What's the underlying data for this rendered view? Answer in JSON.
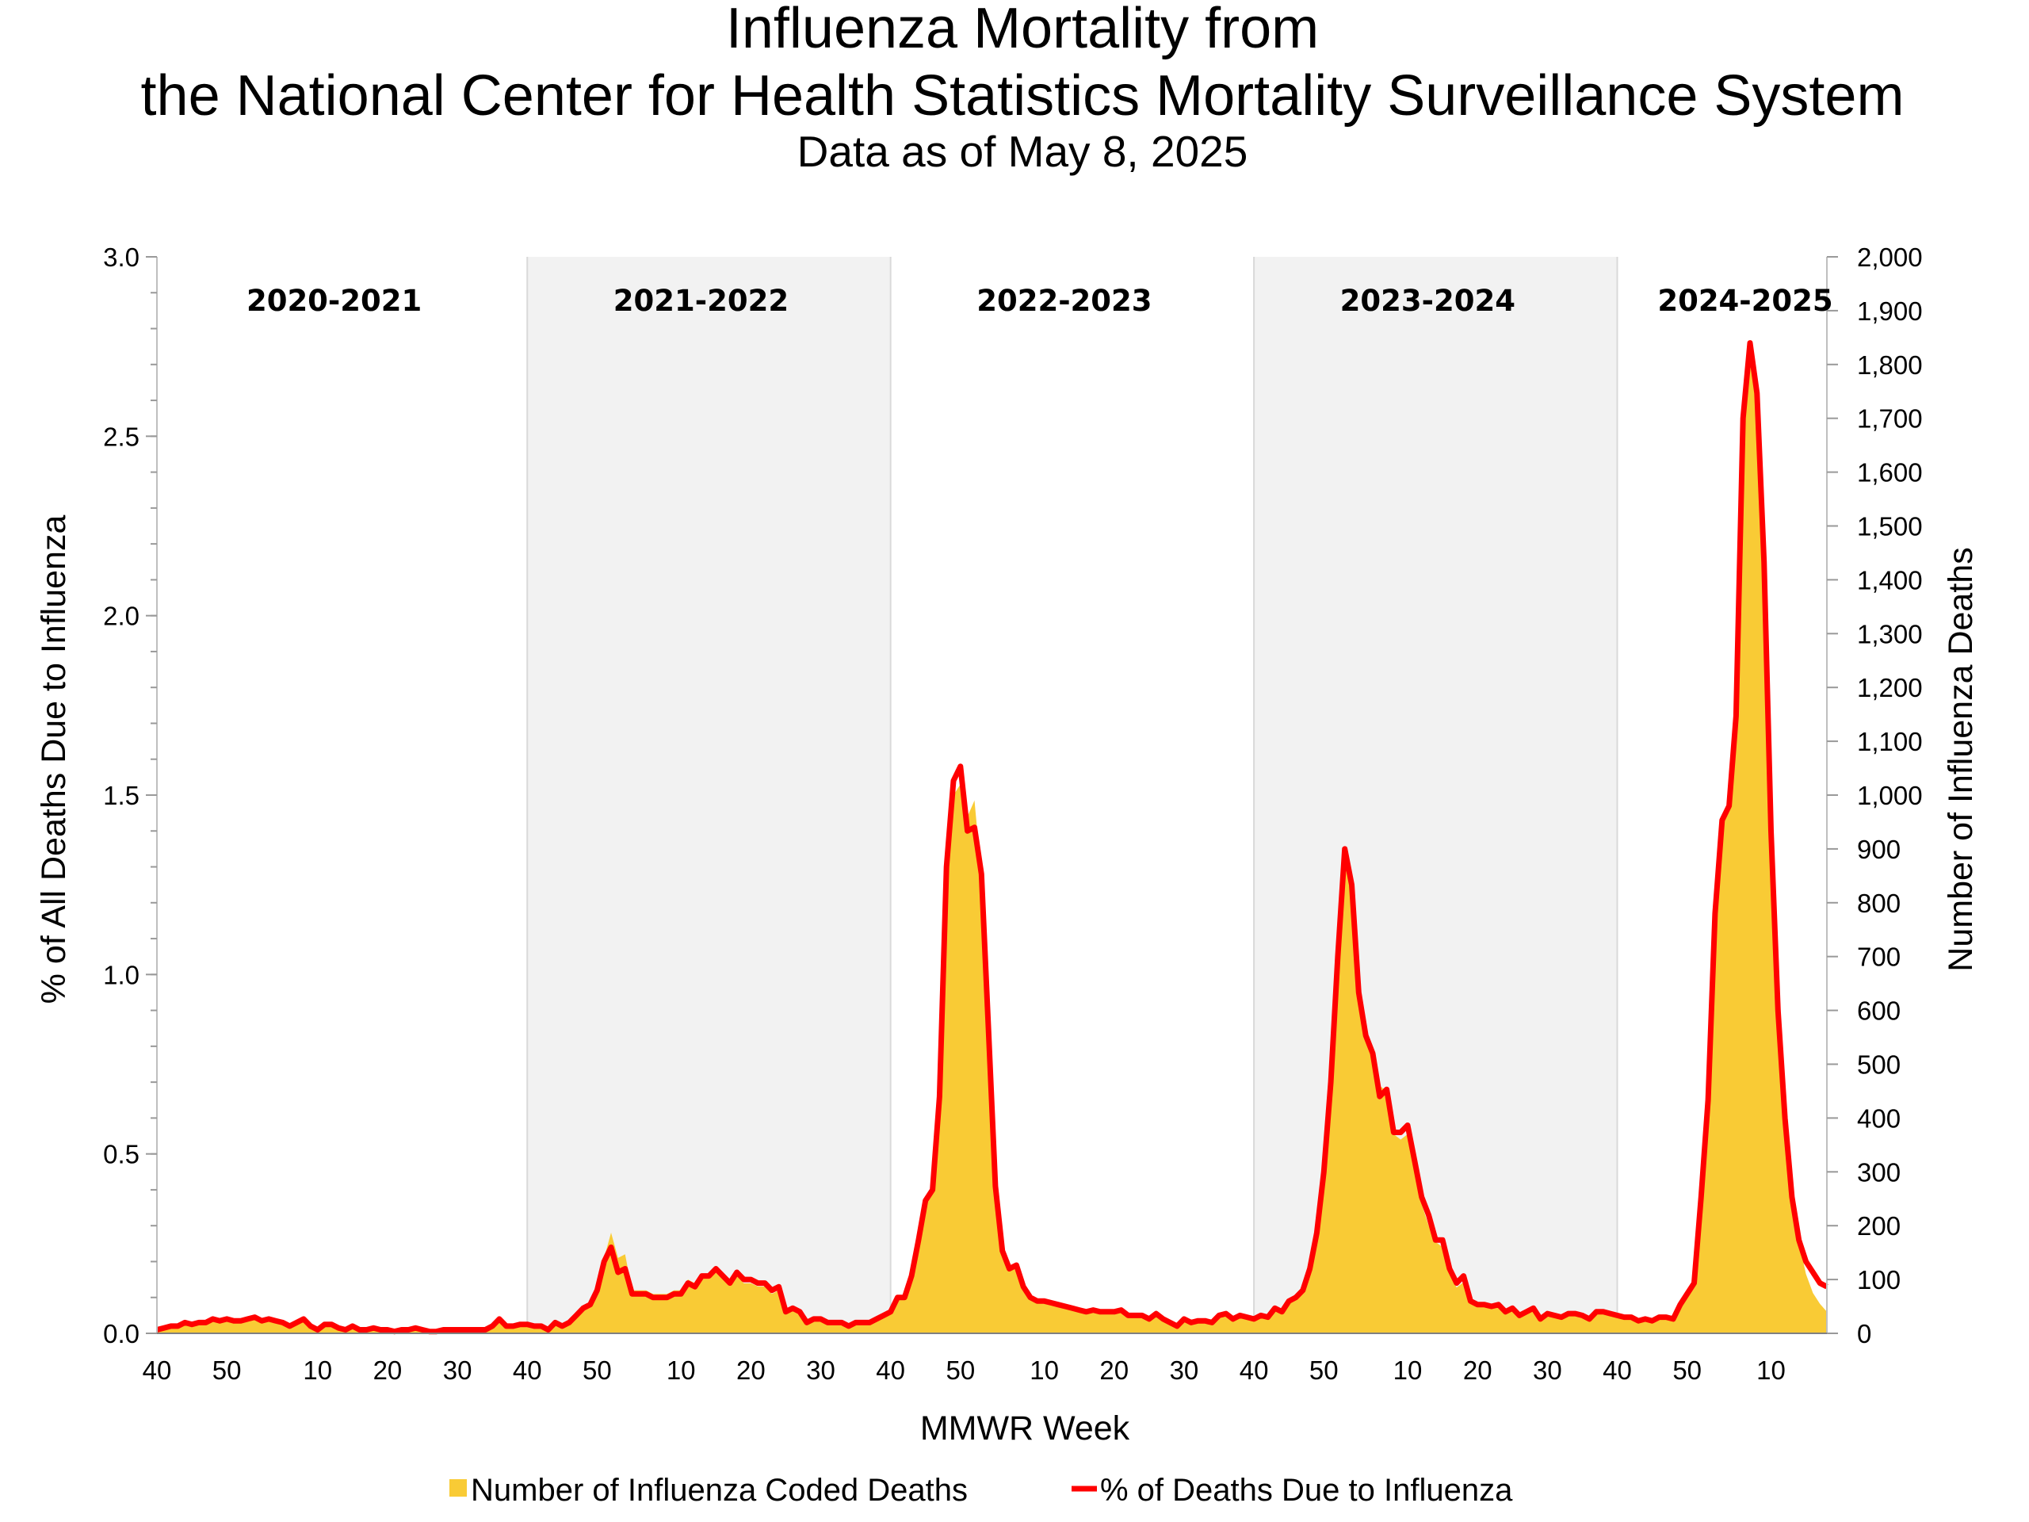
{
  "title_line1": "Influenza Mortality from",
  "title_line2": "the National Center for Health Statistics Mortality Surveillance System",
  "subtitle": "Data as of May 8, 2025",
  "chart_data": {
    "type": "area+line",
    "xlabel": "MMWR Week",
    "ylabel_left": "% of All Deaths Due to Influenza",
    "ylabel_right": "Number of Influenza Deaths",
    "ylim_left": [
      0,
      3.0
    ],
    "ylim_right": [
      0,
      2000
    ],
    "left_ticks": [
      "0.0",
      "0.5",
      "1.0",
      "1.5",
      "2.0",
      "2.5",
      "3.0"
    ],
    "right_ticks": [
      "0",
      "100",
      "200",
      "300",
      "400",
      "500",
      "600",
      "700",
      "800",
      "900",
      "1,000",
      "1,100",
      "1,200",
      "1,300",
      "1,400",
      "1,500",
      "1,600",
      "1,700",
      "1,800",
      "1,900",
      "2,000"
    ],
    "grid": false,
    "legend_position": "bottom",
    "colors": {
      "deaths_area": "#F9CB35",
      "pct_line": "#FF0000",
      "shaded_season": "#F2F2F2"
    },
    "series": [
      {
        "name": "Number of Influenza Coded Deaths",
        "type": "area",
        "axis": "right"
      },
      {
        "name": "% of Deaths Due to Influenza",
        "type": "line",
        "axis": "left"
      }
    ],
    "seasons": [
      {
        "label": "2020-2021",
        "shaded": false,
        "start_week": 40,
        "last_week_of_year": 53,
        "end_week": 39,
        "pct": [
          0.01,
          0.015,
          0.02,
          0.02,
          0.03,
          0.025,
          0.03,
          0.03,
          0.04,
          0.035,
          0.04,
          0.035,
          0.035,
          0.04,
          0.045,
          0.035,
          0.04,
          0.035,
          0.03,
          0.02,
          0.03,
          0.04,
          0.02,
          0.01,
          0.025,
          0.025,
          0.015,
          0.01,
          0.02,
          0.01,
          0.01,
          0.015,
          0.01,
          0.01,
          0.005,
          0.01,
          0.01,
          0.015,
          0.01,
          0.005,
          0.005,
          0.01,
          0.01,
          0.01,
          0.01,
          0.01,
          0.01,
          0.01,
          0.02,
          0.04,
          0.02,
          0.02,
          0.025
        ],
        "deaths": [
          7,
          10,
          13,
          13,
          20,
          17,
          20,
          20,
          27,
          23,
          27,
          23,
          23,
          27,
          30,
          23,
          27,
          23,
          20,
          13,
          20,
          27,
          13,
          7,
          17,
          17,
          10,
          7,
          13,
          7,
          7,
          10,
          7,
          7,
          3,
          7,
          7,
          10,
          7,
          3,
          3,
          7,
          7,
          7,
          7,
          7,
          7,
          7,
          13,
          27,
          13,
          13,
          17
        ]
      },
      {
        "label": "2021-2022",
        "shaded": true,
        "start_week": 40,
        "last_week_of_year": 52,
        "end_week": 39,
        "pct": [
          0.025,
          0.02,
          0.02,
          0.01,
          0.03,
          0.02,
          0.03,
          0.05,
          0.07,
          0.08,
          0.12,
          0.2,
          0.24,
          0.17,
          0.18,
          0.11,
          0.11,
          0.11,
          0.1,
          0.1,
          0.1,
          0.11,
          0.11,
          0.14,
          0.13,
          0.16,
          0.16,
          0.18,
          0.16,
          0.14,
          0.17,
          0.15,
          0.15,
          0.14,
          0.14,
          0.12,
          0.13,
          0.06,
          0.07,
          0.06,
          0.03,
          0.04,
          0.04,
          0.03,
          0.03,
          0.03,
          0.02,
          0.03,
          0.03,
          0.03,
          0.04,
          0.05
        ],
        "deaths": [
          17,
          13,
          13,
          7,
          20,
          13,
          20,
          33,
          47,
          53,
          80,
          140,
          187,
          140,
          147,
          80,
          80,
          80,
          73,
          73,
          73,
          80,
          80,
          100,
          93,
          107,
          107,
          113,
          100,
          93,
          107,
          93,
          93,
          87,
          87,
          73,
          80,
          40,
          47,
          40,
          20,
          27,
          27,
          20,
          20,
          20,
          13,
          20,
          20,
          20,
          27,
          33
        ]
      },
      {
        "label": "2022-2023",
        "shaded": false,
        "start_week": 40,
        "last_week_of_year": 52,
        "end_week": 39,
        "pct": [
          0.06,
          0.1,
          0.1,
          0.16,
          0.26,
          0.37,
          0.4,
          0.66,
          1.3,
          1.54,
          1.58,
          1.4,
          1.41,
          1.28,
          0.85,
          0.41,
          0.23,
          0.18,
          0.19,
          0.13,
          0.1,
          0.09,
          0.09,
          0.085,
          0.08,
          0.075,
          0.07,
          0.065,
          0.06,
          0.065,
          0.06,
          0.06,
          0.06,
          0.065,
          0.05,
          0.05,
          0.05,
          0.04,
          0.055,
          0.04,
          0.03,
          0.02,
          0.04,
          0.03,
          0.035,
          0.035,
          0.03,
          0.05,
          0.055,
          0.04,
          0.05,
          0.045
        ],
        "deaths": [
          40,
          67,
          67,
          107,
          173,
          240,
          267,
          430,
          850,
          1000,
          1020,
          960,
          990,
          850,
          550,
          270,
          150,
          120,
          127,
          87,
          67,
          60,
          60,
          57,
          53,
          50,
          47,
          43,
          40,
          43,
          40,
          40,
          40,
          43,
          33,
          33,
          33,
          27,
          37,
          27,
          20,
          13,
          27,
          20,
          23,
          23,
          20,
          33,
          37,
          27,
          33,
          30
        ]
      },
      {
        "label": "2023-2024",
        "shaded": true,
        "start_week": 40,
        "last_week_of_year": 52,
        "end_week": 39,
        "pct": [
          0.04,
          0.05,
          0.045,
          0.07,
          0.06,
          0.09,
          0.1,
          0.12,
          0.18,
          0.28,
          0.45,
          0.7,
          1.05,
          1.35,
          1.25,
          0.95,
          0.83,
          0.78,
          0.66,
          0.68,
          0.56,
          0.56,
          0.58,
          0.48,
          0.38,
          0.33,
          0.26,
          0.26,
          0.18,
          0.14,
          0.16,
          0.09,
          0.08,
          0.08,
          0.075,
          0.08,
          0.06,
          0.07,
          0.05,
          0.06,
          0.07,
          0.04,
          0.055,
          0.05,
          0.045,
          0.055,
          0.055,
          0.05,
          0.04,
          0.06,
          0.06,
          0.055
        ],
        "deaths": [
          27,
          33,
          30,
          47,
          40,
          60,
          67,
          80,
          120,
          187,
          300,
          467,
          700,
          900,
          820,
          620,
          550,
          500,
          460,
          450,
          370,
          360,
          370,
          300,
          240,
          200,
          170,
          160,
          110,
          85,
          95,
          55,
          50,
          50,
          50,
          50,
          40,
          45,
          33,
          40,
          45,
          27,
          37,
          33,
          30,
          37,
          37,
          33,
          27,
          40,
          40,
          37
        ]
      },
      {
        "label": "2024-2025",
        "shaded": false,
        "start_week": 40,
        "last_week_of_year": 52,
        "end_week": 18,
        "pct": [
          0.05,
          0.045,
          0.045,
          0.035,
          0.04,
          0.035,
          0.045,
          0.045,
          0.04,
          0.08,
          0.11,
          0.14,
          0.38,
          0.65,
          1.17,
          1.43,
          1.47,
          1.72,
          2.55,
          2.76,
          2.62,
          2.15,
          1.4,
          0.9,
          0.6,
          0.38,
          0.26,
          0.2,
          0.17,
          0.14,
          0.13
        ],
        "deaths": [
          33,
          30,
          30,
          23,
          27,
          23,
          30,
          30,
          27,
          55,
          75,
          95,
          250,
          440,
          800,
          950,
          980,
          1150,
          1700,
          1840,
          1740,
          1420,
          930,
          590,
          380,
          240,
          170,
          110,
          75,
          55,
          40
        ]
      }
    ]
  }
}
